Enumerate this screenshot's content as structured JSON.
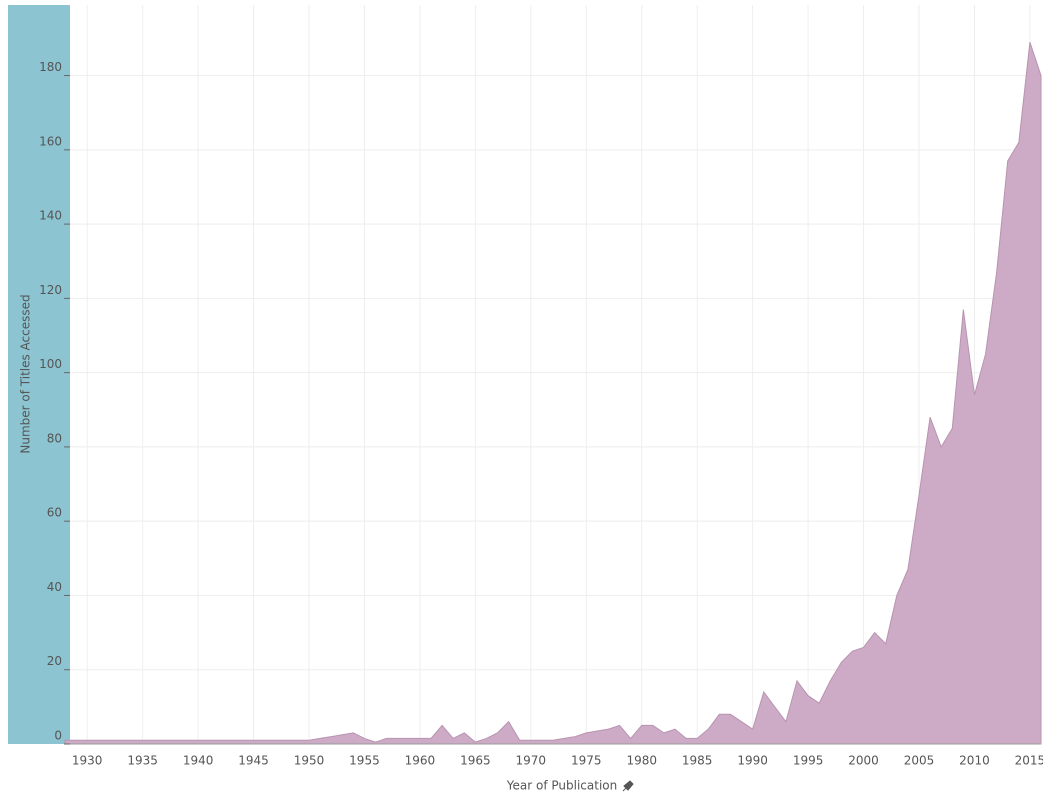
{
  "chart_data": {
    "type": "area",
    "x_label": "Year of Publication",
    "y_label": "Number of Titles Accessed",
    "x": [
      1928,
      1929,
      1930,
      1931,
      1932,
      1933,
      1934,
      1935,
      1936,
      1937,
      1938,
      1939,
      1940,
      1941,
      1942,
      1943,
      1944,
      1945,
      1946,
      1947,
      1948,
      1949,
      1950,
      1951,
      1952,
      1953,
      1954,
      1955,
      1956,
      1957,
      1958,
      1959,
      1960,
      1961,
      1962,
      1963,
      1964,
      1965,
      1966,
      1967,
      1968,
      1969,
      1970,
      1971,
      1972,
      1973,
      1974,
      1975,
      1976,
      1977,
      1978,
      1979,
      1980,
      1981,
      1982,
      1983,
      1984,
      1985,
      1986,
      1987,
      1988,
      1989,
      1990,
      1991,
      1992,
      1993,
      1994,
      1995,
      1996,
      1997,
      1998,
      1999,
      2000,
      2001,
      2002,
      2003,
      2004,
      2005,
      2006,
      2007,
      2008,
      2009,
      2010,
      2011,
      2012,
      2013,
      2014,
      2015,
      2016
    ],
    "series": [
      {
        "color": "#cdaac6",
        "values": [
          1,
          1,
          1,
          1,
          1,
          1,
          1,
          1,
          1,
          1,
          1,
          1,
          1,
          1,
          1,
          1,
          1,
          1,
          1,
          1,
          1,
          1,
          1,
          1.5,
          2,
          2.5,
          3,
          1.5,
          0.5,
          1.5,
          1.5,
          1.5,
          1.5,
          1.5,
          5,
          1.5,
          3,
          0.5,
          1.5,
          3,
          6,
          1,
          1,
          1,
          1,
          1.5,
          2,
          3,
          3.5,
          4,
          5,
          1.5,
          5,
          5,
          3,
          4,
          1.5,
          1.5,
          4,
          8,
          8,
          6,
          4,
          14,
          10,
          6,
          17,
          13,
          11,
          17,
          22,
          25,
          26,
          30,
          27,
          40,
          47,
          67,
          88,
          80,
          85,
          117,
          94,
          105,
          127,
          157,
          162,
          189,
          180
        ]
      }
    ],
    "xlim": [
      1928,
      2016
    ],
    "ylim": [
      0,
      199
    ],
    "xticks": [
      1930,
      1935,
      1940,
      1945,
      1950,
      1955,
      1960,
      1965,
      1970,
      1975,
      1980,
      1985,
      1990,
      1995,
      2000,
      2005,
      2010,
      2015
    ],
    "yticks": [
      0,
      20,
      40,
      60,
      80,
      100,
      120,
      140,
      160,
      180
    ],
    "grid": true
  }
}
